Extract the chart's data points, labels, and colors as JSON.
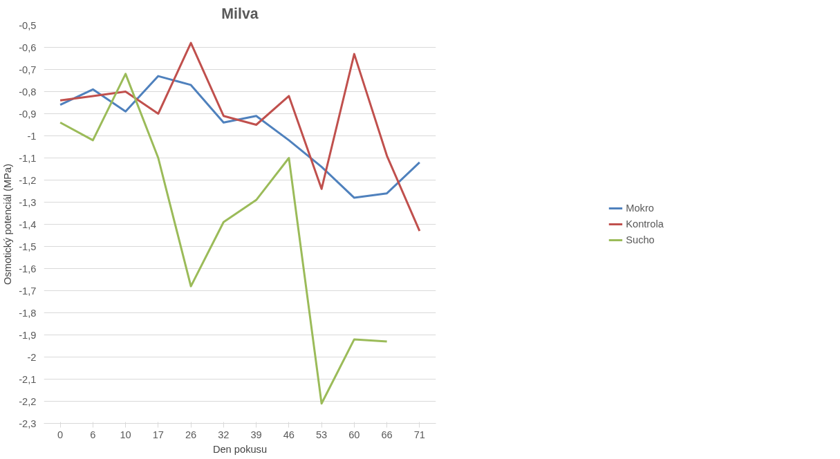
{
  "chart_data": {
    "type": "line",
    "title": "Milva",
    "xlabel": "Den pokusu",
    "ylabel": "Osmotický potenciál (MPa)",
    "categories": [
      "0",
      "6",
      "10",
      "17",
      "26",
      "32",
      "39",
      "46",
      "53",
      "60",
      "66",
      "71"
    ],
    "series": [
      {
        "name": "Mokro",
        "color": "#4f81bd",
        "values": [
          -0.86,
          -0.79,
          -0.89,
          -0.73,
          -0.77,
          -0.94,
          -0.91,
          -1.02,
          -1.14,
          -1.28,
          -1.26,
          -1.12
        ]
      },
      {
        "name": "Kontrola",
        "color": "#c0504d",
        "values": [
          -0.84,
          -0.82,
          -0.8,
          -0.9,
          -0.58,
          -0.91,
          -0.95,
          -0.82,
          -1.24,
          -0.63,
          -1.09,
          -1.43
        ]
      },
      {
        "name": "Sucho",
        "color": "#9bbb59",
        "values": [
          -0.94,
          -1.02,
          -0.72,
          -1.1,
          -1.68,
          -1.39,
          -1.29,
          -1.1,
          -2.21,
          -1.92,
          -1.93,
          null
        ]
      }
    ],
    "ylim": [
      -2.3,
      -0.5
    ],
    "yticks": [
      {
        "value": -0.5,
        "label": "-0,5"
      },
      {
        "value": -0.6,
        "label": "-0,6"
      },
      {
        "value": -0.7,
        "label": "-0,7"
      },
      {
        "value": -0.8,
        "label": "-0,8"
      },
      {
        "value": -0.9,
        "label": "-0,9"
      },
      {
        "value": -1,
        "label": "-1"
      },
      {
        "value": -1.1,
        "label": "-1,1"
      },
      {
        "value": -1.2,
        "label": "-1,2"
      },
      {
        "value": -1.3,
        "label": "-1,3"
      },
      {
        "value": -1.4,
        "label": "-1,4"
      },
      {
        "value": -1.5,
        "label": "-1,5"
      },
      {
        "value": -1.6,
        "label": "-1,6"
      },
      {
        "value": -1.7,
        "label": "-1,7"
      },
      {
        "value": -1.8,
        "label": "-1,8"
      },
      {
        "value": -1.9,
        "label": "-1,9"
      },
      {
        "value": -2,
        "label": "-2"
      },
      {
        "value": -2.1,
        "label": "-2,1"
      },
      {
        "value": -2.2,
        "label": "-2,2"
      },
      {
        "value": -2.3,
        "label": "-2,3"
      }
    ],
    "grid": "y",
    "legend": "right",
    "marker": "none",
    "line_style": "solid"
  }
}
